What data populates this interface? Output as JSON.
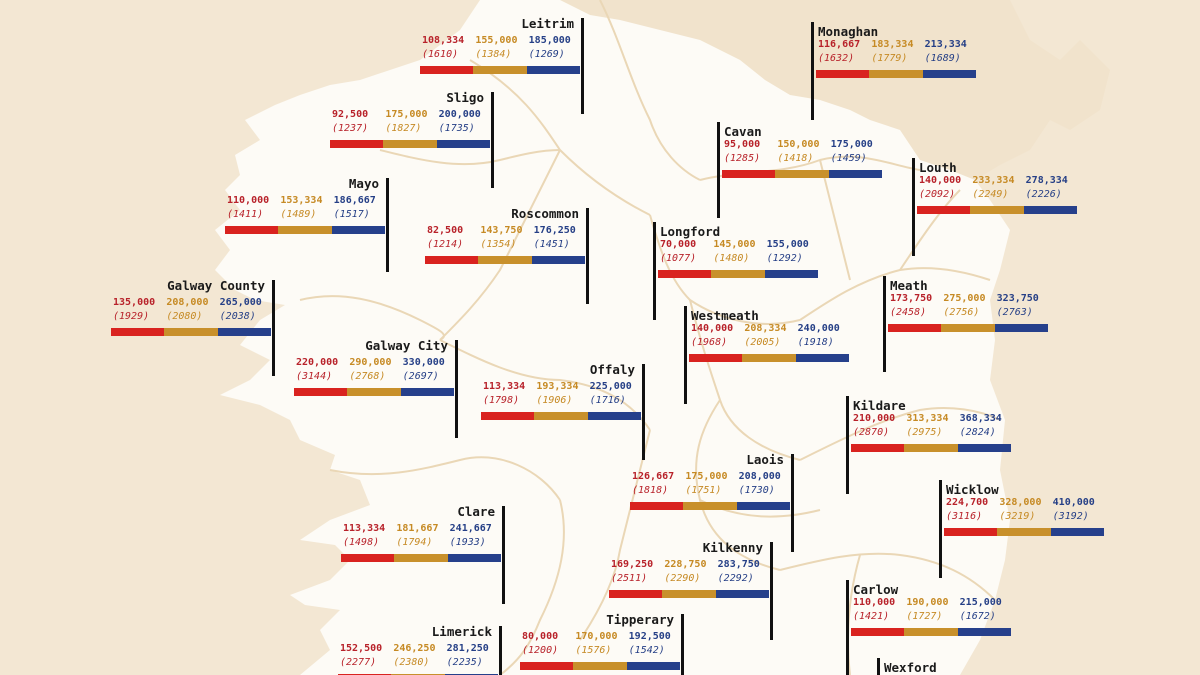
{
  "colors": {
    "sea": "#f3e7d3",
    "land": "#fdfbf6",
    "ni_land": "#f1e3cc",
    "border": "#ead7b6",
    "pole": "#111111",
    "series": [
      "#d9231f",
      "#c8902b",
      "#26408b"
    ]
  },
  "counties": [
    {
      "name": "Leitrim",
      "values": [
        "108,334",
        "155,000",
        "185,000"
      ],
      "counts": [
        "(1610)",
        "(1384)",
        "(1269)"
      ]
    },
    {
      "name": "Monaghan",
      "values": [
        "116,667",
        "183,334",
        "213,334"
      ],
      "counts": [
        "(1632)",
        "(1779)",
        "(1689)"
      ]
    },
    {
      "name": "Sligo",
      "values": [
        "92,500",
        "175,000",
        "200,000"
      ],
      "counts": [
        "(1237)",
        "(1827)",
        "(1735)"
      ]
    },
    {
      "name": "Cavan",
      "values": [
        "95,000",
        "150,000",
        "175,000"
      ],
      "counts": [
        "(1285)",
        "(1418)",
        "(1459)"
      ]
    },
    {
      "name": "Louth",
      "values": [
        "140,000",
        "233,334",
        "278,334"
      ],
      "counts": [
        "(2092)",
        "(2249)",
        "(2226)"
      ]
    },
    {
      "name": "Mayo",
      "values": [
        "110,000",
        "153,334",
        "186,667"
      ],
      "counts": [
        "(1411)",
        "(1489)",
        "(1517)"
      ]
    },
    {
      "name": "Roscommon",
      "values": [
        "82,500",
        "143,750",
        "176,250"
      ],
      "counts": [
        "(1214)",
        "(1354)",
        "(1451)"
      ]
    },
    {
      "name": "Longford",
      "values": [
        "70,000",
        "145,000",
        "155,000"
      ],
      "counts": [
        "(1077)",
        "(1480)",
        "(1292)"
      ]
    },
    {
      "name": "Galway County",
      "values": [
        "135,000",
        "208,000",
        "265,000"
      ],
      "counts": [
        "(1929)",
        "(2080)",
        "(2038)"
      ]
    },
    {
      "name": "Meath",
      "values": [
        "173,750",
        "275,000",
        "323,750"
      ],
      "counts": [
        "(2458)",
        "(2756)",
        "(2763)"
      ]
    },
    {
      "name": "Westmeath",
      "values": [
        "140,000",
        "208,334",
        "240,000"
      ],
      "counts": [
        "(1968)",
        "(2005)",
        "(1918)"
      ]
    },
    {
      "name": "Galway City",
      "values": [
        "220,000",
        "290,000",
        "330,000"
      ],
      "counts": [
        "(3144)",
        "(2768)",
        "(2697)"
      ]
    },
    {
      "name": "Offaly",
      "values": [
        "113,334",
        "193,334",
        "225,000"
      ],
      "counts": [
        "(1798)",
        "(1906)",
        "(1716)"
      ]
    },
    {
      "name": "Kildare",
      "values": [
        "210,000",
        "313,334",
        "368,334"
      ],
      "counts": [
        "(2870)",
        "(2975)",
        "(2824)"
      ]
    },
    {
      "name": "Laois",
      "values": [
        "126,667",
        "175,000",
        "208,000"
      ],
      "counts": [
        "(1818)",
        "(1751)",
        "(1730)"
      ]
    },
    {
      "name": "Wicklow",
      "values": [
        "224,700",
        "328,000",
        "410,000"
      ],
      "counts": [
        "(3116)",
        "(3219)",
        "(3192)"
      ]
    },
    {
      "name": "Clare",
      "values": [
        "113,334",
        "181,667",
        "241,667"
      ],
      "counts": [
        "(1498)",
        "(1794)",
        "(1933)"
      ]
    },
    {
      "name": "Kilkenny",
      "values": [
        "169,250",
        "228,750",
        "283,750"
      ],
      "counts": [
        "(2511)",
        "(2290)",
        "(2292)"
      ]
    },
    {
      "name": "Carlow",
      "values": [
        "110,000",
        "190,000",
        "215,000"
      ],
      "counts": [
        "(1421)",
        "(1727)",
        "(1672)"
      ]
    },
    {
      "name": "Limerick",
      "values": [
        "152,500",
        "246,250",
        "281,250"
      ],
      "counts": [
        "(2277)",
        "(2380)",
        "(2235)"
      ]
    },
    {
      "name": "Tipperary",
      "values": [
        "80,000",
        "170,000",
        "192,500"
      ],
      "counts": [
        "(1200)",
        "(1576)",
        "(1542)"
      ]
    },
    {
      "name": "Wexford",
      "values": [],
      "counts": []
    }
  ]
}
